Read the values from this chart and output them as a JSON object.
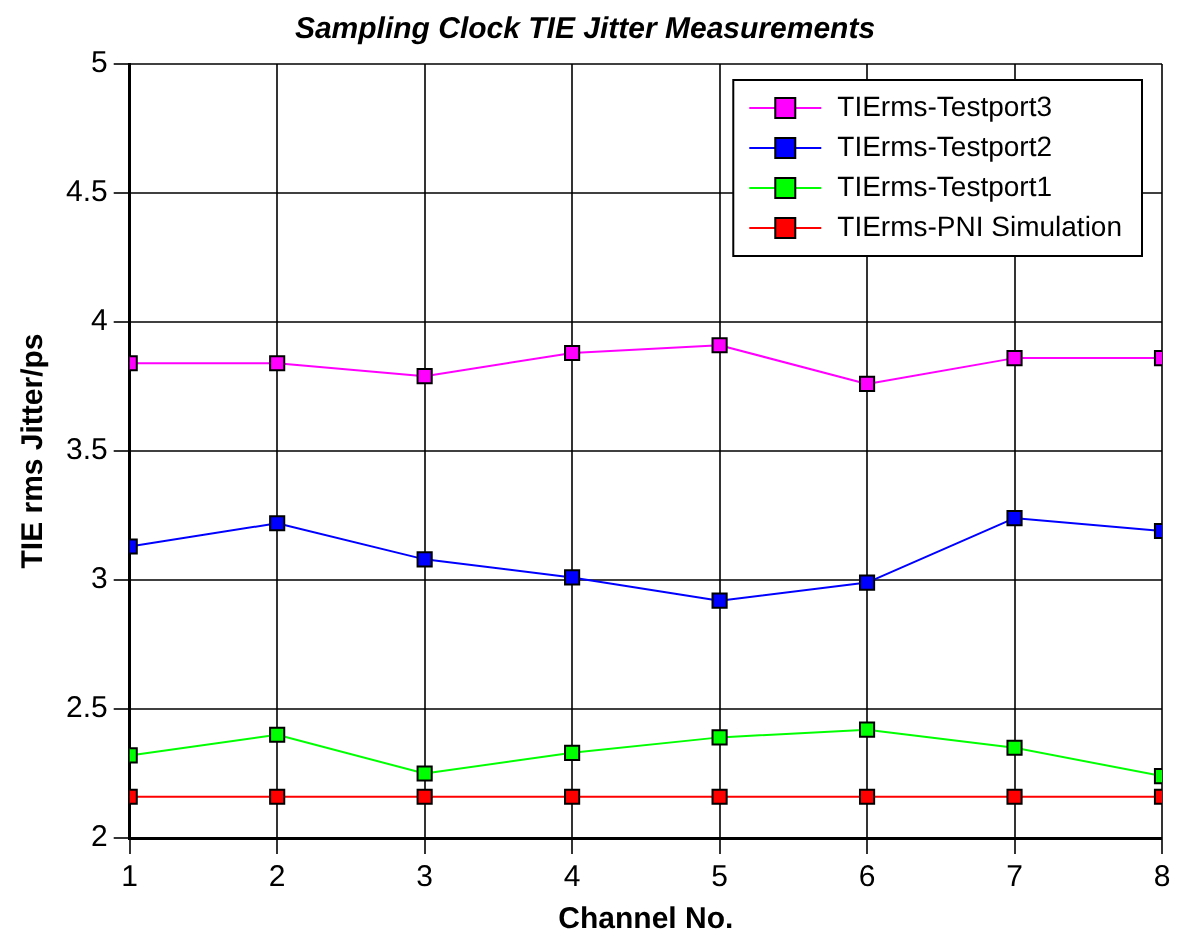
{
  "chart_data": {
    "type": "line",
    "title": "Sampling Clock TIE Jitter Measurements",
    "xlabel": "Channel No.",
    "ylabel": "TIE rms Jitter/ps",
    "x": [
      1,
      2,
      3,
      4,
      5,
      6,
      7,
      8
    ],
    "series": [
      {
        "name": "TIErms-Testport3",
        "color": "#ff00ff",
        "values": [
          3.84,
          3.84,
          3.79,
          3.88,
          3.91,
          3.76,
          3.86,
          3.86
        ]
      },
      {
        "name": "TIErms-Testport2",
        "color": "#0000ff",
        "values": [
          3.13,
          3.22,
          3.08,
          3.01,
          2.92,
          2.99,
          3.24,
          3.19
        ]
      },
      {
        "name": "TIErms-Testport1",
        "color": "#00ff00",
        "values": [
          2.32,
          2.4,
          2.25,
          2.33,
          2.39,
          2.42,
          2.35,
          2.24
        ]
      },
      {
        "name": "TIErms-PNI Simulation",
        "color": "#ff0000",
        "values": [
          2.16,
          2.16,
          2.16,
          2.16,
          2.16,
          2.16,
          2.16,
          2.16
        ]
      }
    ],
    "xlim": [
      1,
      8
    ],
    "xticks": [
      1,
      2,
      3,
      4,
      5,
      6,
      7,
      8
    ],
    "ylim": [
      2,
      5
    ],
    "yticks": [
      2,
      2.5,
      3,
      3.5,
      4,
      4.5,
      5
    ],
    "grid": true,
    "legend": "top right",
    "marker": "square",
    "line_style": "solid"
  }
}
